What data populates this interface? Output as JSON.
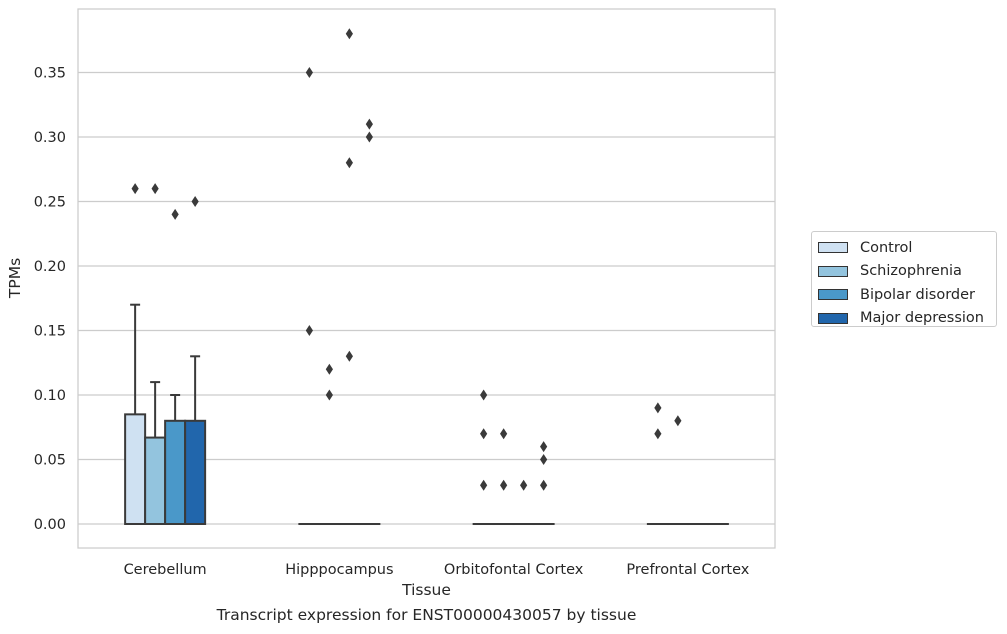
{
  "chart_data": {
    "type": "bar",
    "xlabel": "Tissue",
    "ylabel": "TPMs",
    "caption": "Transcript expression for ENST00000430057 by tissue",
    "ylim": [
      -0.018,
      0.395
    ],
    "yticks": [
      "0.00",
      "0.05",
      "0.10",
      "0.15",
      "0.20",
      "0.25",
      "0.30",
      "0.35"
    ],
    "grid": "horizontal",
    "legend_position": "right",
    "categories": [
      "Cerebellum",
      "Hipppocampus",
      "Orbitofontal Cortex",
      "Prefrontal Cortex"
    ],
    "series": [
      {
        "name": "Control",
        "color": "#cfe1f2",
        "values": [
          0.085,
          0.0,
          0.0,
          0.0
        ],
        "error_upper": [
          0.17,
          null,
          null,
          null
        ],
        "outliers": [
          [
            0.26
          ],
          [
            0.35,
            0.15
          ],
          [
            0.1,
            0.07,
            0.03
          ],
          [
            0.09,
            0.07
          ]
        ]
      },
      {
        "name": "Schizophrenia",
        "color": "#93c4de",
        "values": [
          0.067,
          0.0,
          0.0,
          0.0
        ],
        "error_upper": [
          0.11,
          null,
          null,
          null
        ],
        "outliers": [
          [
            0.26
          ],
          [
            0.12,
            0.1
          ],
          [
            0.07,
            0.03
          ],
          [
            0.08
          ]
        ]
      },
      {
        "name": "Bipolar disorder",
        "color": "#4a98c9",
        "values": [
          0.08,
          0.0,
          0.0,
          0.0
        ],
        "error_upper": [
          0.1,
          null,
          null,
          null
        ],
        "outliers": [
          [
            0.24
          ],
          [
            0.38,
            0.28,
            0.13
          ],
          [
            0.03
          ],
          []
        ]
      },
      {
        "name": "Major depression",
        "color": "#2166ac",
        "values": [
          0.08,
          0.0,
          0.0,
          0.0
        ],
        "error_upper": [
          0.13,
          null,
          null,
          null
        ],
        "outliers": [
          [
            0.25
          ],
          [
            0.31,
            0.3
          ],
          [
            0.06,
            0.05,
            0.03
          ],
          []
        ]
      }
    ]
  }
}
